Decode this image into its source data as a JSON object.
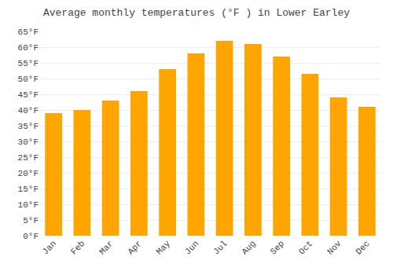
{
  "chart_data": {
    "type": "bar",
    "title": "Average monthly temperatures (°F ) in Lower Earley",
    "categories": [
      "Jan",
      "Feb",
      "Mar",
      "Apr",
      "May",
      "Jun",
      "Jul",
      "Aug",
      "Sep",
      "Oct",
      "Nov",
      "Dec"
    ],
    "values": [
      39,
      40,
      43,
      46,
      53,
      58,
      62,
      61,
      57,
      51.5,
      44,
      41
    ],
    "color": "#FFA500",
    "ylim": [
      0,
      65
    ],
    "yticks": [
      {
        "value": 0,
        "label": "0°F"
      },
      {
        "value": 5,
        "label": "5°F"
      },
      {
        "value": 10,
        "label": "10°F"
      },
      {
        "value": 15,
        "label": "15°F"
      },
      {
        "value": 20,
        "label": "20°F"
      },
      {
        "value": 25,
        "label": "25°F"
      },
      {
        "value": 30,
        "label": "30°F"
      },
      {
        "value": 35,
        "label": "35°F"
      },
      {
        "value": 40,
        "label": "40°F"
      },
      {
        "value": 45,
        "label": "45°F"
      },
      {
        "value": 50,
        "label": "50°F"
      },
      {
        "value": 55,
        "label": "55°F"
      },
      {
        "value": 60,
        "label": "60°F"
      },
      {
        "value": 65,
        "label": "65°F"
      }
    ],
    "grid": true
  }
}
